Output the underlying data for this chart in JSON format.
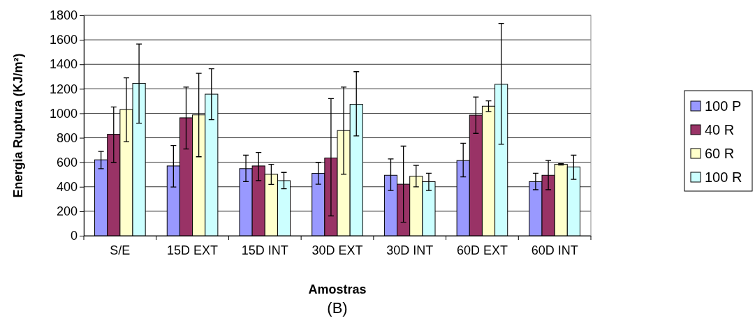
{
  "chart_data": {
    "type": "bar",
    "categories": [
      "S/E",
      "15D EXT",
      "15D INT",
      "30D EXT",
      "30D INT",
      "60D EXT",
      "60D INT"
    ],
    "series": [
      {
        "name": "100 P",
        "color": "#9999ff",
        "values": [
          620,
          570,
          548,
          510,
          494,
          614,
          442
        ],
        "errors": [
          [
            548,
            688
          ],
          [
            398,
            737
          ],
          [
            442,
            658
          ],
          [
            421,
            598
          ],
          [
            369,
            627
          ],
          [
            481,
            755
          ],
          [
            376,
            510
          ]
        ]
      },
      {
        "name": "40 R",
        "color": "#993366",
        "values": [
          828,
          963,
          570,
          635,
          421,
          985,
          494
        ],
        "errors": [
          [
            598,
            1052
          ],
          [
            708,
            1214
          ],
          [
            450,
            680
          ],
          [
            162,
            1120
          ],
          [
            110,
            732
          ],
          [
            836,
            1133
          ],
          [
            376,
            614
          ]
        ]
      },
      {
        "name": "60 R",
        "color": "#ffffcc",
        "values": [
          1031,
          987,
          502,
          859,
          486,
          1058,
          583
        ],
        "errors": [
          [
            768,
            1290
          ],
          [
            645,
            1326
          ],
          [
            419,
            583
          ],
          [
            502,
            1214
          ],
          [
            400,
            575
          ],
          [
            1015,
            1102
          ],
          [
            578,
            589
          ]
        ]
      },
      {
        "name": "100 R",
        "color": "#ccffff",
        "values": [
          1245,
          1156,
          450,
          1073,
          442,
          1237,
          562
        ],
        "errors": [
          [
            919,
            1566
          ],
          [
            948,
            1363
          ],
          [
            384,
            517
          ],
          [
            815,
            1340
          ],
          [
            369,
            510
          ],
          [
            747,
            1734
          ],
          [
            461,
            658
          ]
        ]
      }
    ],
    "xlabel": "Amostras",
    "ylabel": "Energia  Ruptura (KJ/m²)",
    "ylim": [
      0,
      1800
    ],
    "yticks": [
      0,
      200,
      400,
      600,
      800,
      1000,
      1200,
      1400,
      1600,
      1800
    ],
    "grid": "y",
    "legend": "right",
    "annotations": [
      "(B)"
    ]
  }
}
